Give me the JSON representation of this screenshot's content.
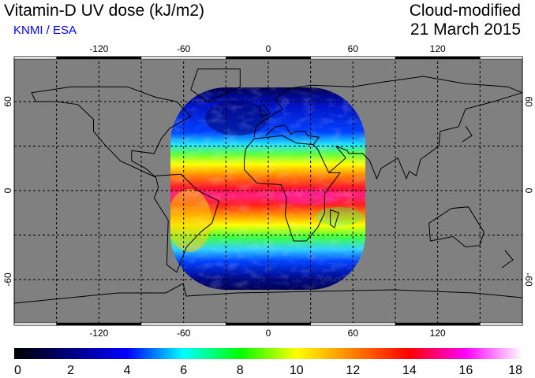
{
  "header": {
    "title": "Vitamin-D UV dose (kJ/m2)",
    "source": "KNMI / ESA",
    "source_color": "#0000ff",
    "mode": "Cloud-modified",
    "date": "21 March 2015"
  },
  "map": {
    "lon_labels": [
      "-120",
      "-60",
      "0",
      "60",
      "120"
    ],
    "lon_values": [
      -120,
      -60,
      0,
      60,
      120
    ],
    "lat_labels": [
      "60",
      "0",
      "-60"
    ],
    "lat_values": [
      60,
      0,
      -60
    ],
    "ocean_color": "#808080",
    "coverage_lon_range": [
      -68,
      70
    ],
    "coverage_lat_range": [
      -70,
      70
    ]
  },
  "colorbar": {
    "min": 0,
    "max": 18,
    "ticks": [
      "0",
      "2",
      "4",
      "6",
      "8",
      "10",
      "12",
      "14",
      "16",
      "18"
    ],
    "colors": [
      "#000000",
      "#000080",
      "#0000ff",
      "#00ffff",
      "#00ff00",
      "#ffff00",
      "#ff8000",
      "#ff0000",
      "#ff00ff",
      "#ffffff"
    ]
  }
}
